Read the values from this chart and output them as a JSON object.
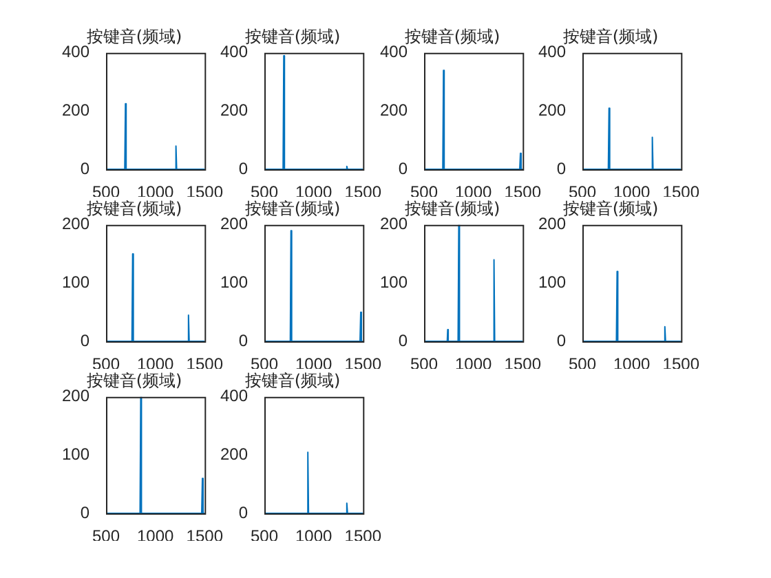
{
  "chart_data": [
    {
      "type": "line",
      "title": "按键音(频域)",
      "x": [
        500,
        690,
        697,
        704,
        1202,
        1209,
        1216,
        1500
      ],
      "values": [
        0,
        0,
        225,
        0,
        0,
        80,
        0,
        0
      ],
      "xlim": [
        500,
        1500
      ],
      "xticks": [
        500,
        1000,
        1500
      ],
      "ylim": [
        0,
        400
      ],
      "yticks": [
        0,
        200,
        400
      ],
      "color": "#0072bd"
    },
    {
      "type": "line",
      "title": "按键音(频域)",
      "x": [
        500,
        690,
        697,
        704,
        1329,
        1336,
        1343,
        1500
      ],
      "values": [
        0,
        0,
        390,
        0,
        0,
        10,
        0,
        0
      ],
      "xlim": [
        500,
        1500
      ],
      "xticks": [
        500,
        1000,
        1500
      ],
      "ylim": [
        0,
        400
      ],
      "yticks": [
        0,
        200,
        400
      ],
      "color": "#0072bd"
    },
    {
      "type": "line",
      "title": "按键音(频域)",
      "x": [
        500,
        690,
        697,
        704,
        1470,
        1477,
        1484,
        1500
      ],
      "values": [
        0,
        0,
        340,
        0,
        0,
        55,
        0,
        0
      ],
      "xlim": [
        500,
        1500
      ],
      "xticks": [
        500,
        1000,
        1500
      ],
      "ylim": [
        0,
        400
      ],
      "yticks": [
        0,
        200,
        400
      ],
      "color": "#0072bd"
    },
    {
      "type": "line",
      "title": "按键音(频域)",
      "x": [
        500,
        763,
        770,
        777,
        1202,
        1209,
        1216,
        1500
      ],
      "values": [
        0,
        0,
        210,
        0,
        0,
        110,
        0,
        0
      ],
      "xlim": [
        500,
        1500
      ],
      "xticks": [
        500,
        1000,
        1500
      ],
      "ylim": [
        0,
        400
      ],
      "yticks": [
        0,
        200,
        400
      ],
      "color": "#0072bd"
    },
    {
      "type": "line",
      "title": "按键音(频域)",
      "x": [
        500,
        763,
        770,
        777,
        1329,
        1336,
        1343,
        1500
      ],
      "values": [
        0,
        0,
        150,
        0,
        0,
        45,
        0,
        0
      ],
      "xlim": [
        500,
        1500
      ],
      "xticks": [
        500,
        1000,
        1500
      ],
      "ylim": [
        0,
        200
      ],
      "yticks": [
        0,
        100,
        200
      ],
      "color": "#0072bd"
    },
    {
      "type": "line",
      "title": "按键音(频域)",
      "x": [
        500,
        763,
        770,
        777,
        1470,
        1477,
        1484,
        1500
      ],
      "values": [
        0,
        0,
        190,
        0,
        0,
        50,
        0,
        0
      ],
      "xlim": [
        500,
        1500
      ],
      "xticks": [
        500,
        1000,
        1500
      ],
      "ylim": [
        0,
        200
      ],
      "yticks": [
        0,
        100,
        200
      ],
      "color": "#0072bd"
    },
    {
      "type": "line",
      "title": "按键音(频域)",
      "x": [
        500,
        735,
        740,
        745,
        845,
        852,
        859,
        1202,
        1209,
        1216,
        1500
      ],
      "values": [
        0,
        0,
        20,
        0,
        0,
        200,
        0,
        0,
        140,
        0,
        0
      ],
      "xlim": [
        500,
        1500
      ],
      "xticks": [
        500,
        1000,
        1500
      ],
      "ylim": [
        0,
        200
      ],
      "yticks": [
        0,
        100,
        200
      ],
      "color": "#0072bd"
    },
    {
      "type": "line",
      "title": "按键音(频域)",
      "x": [
        500,
        845,
        852,
        859,
        1329,
        1336,
        1343,
        1500
      ],
      "values": [
        0,
        0,
        120,
        0,
        0,
        25,
        0,
        0
      ],
      "xlim": [
        500,
        1500
      ],
      "xticks": [
        500,
        1000,
        1500
      ],
      "ylim": [
        0,
        200
      ],
      "yticks": [
        0,
        100,
        200
      ],
      "color": "#0072bd"
    },
    {
      "type": "line",
      "title": "按键音(频域)",
      "x": [
        500,
        845,
        852,
        859,
        1470,
        1477,
        1484,
        1500
      ],
      "values": [
        0,
        0,
        200,
        0,
        0,
        60,
        0,
        0
      ],
      "xlim": [
        500,
        1500
      ],
      "xticks": [
        500,
        1000,
        1500
      ],
      "ylim": [
        0,
        200
      ],
      "yticks": [
        0,
        100,
        200
      ],
      "color": "#0072bd"
    },
    {
      "type": "line",
      "title": "按键音(频域)",
      "x": [
        500,
        934,
        941,
        948,
        1329,
        1336,
        1343,
        1500
      ],
      "values": [
        0,
        0,
        210,
        0,
        0,
        35,
        0,
        0
      ],
      "xlim": [
        500,
        1500
      ],
      "xticks": [
        500,
        1000,
        1500
      ],
      "ylim": [
        0,
        400
      ],
      "yticks": [
        0,
        200,
        400
      ],
      "color": "#0072bd"
    }
  ]
}
